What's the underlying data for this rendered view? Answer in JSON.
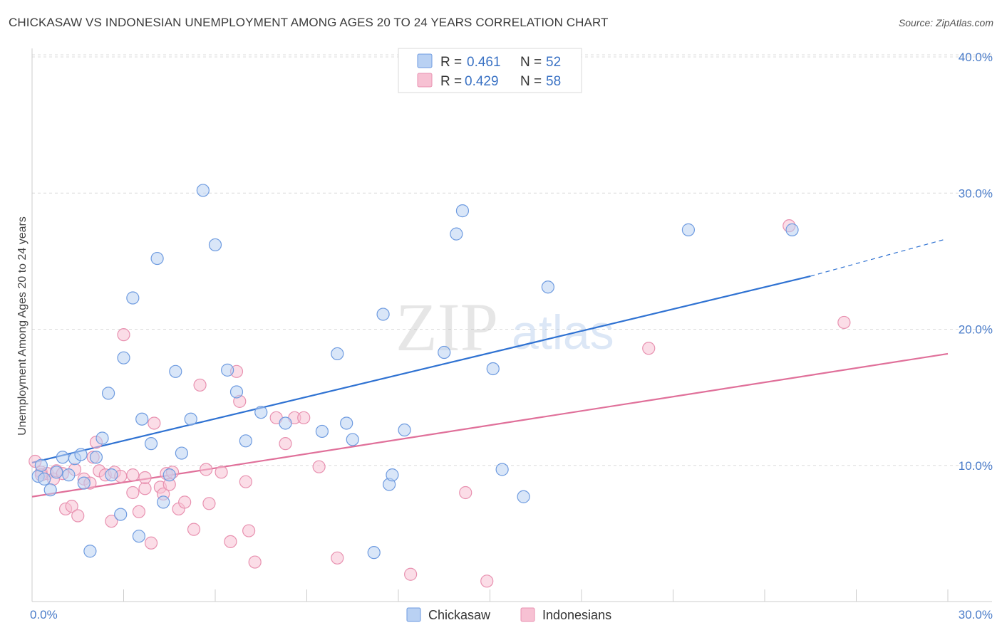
{
  "header": {
    "title": "CHICKASAW VS INDONESIAN UNEMPLOYMENT AMONG AGES 20 TO 24 YEARS CORRELATION CHART",
    "source": "Source: ZipAtlas.com"
  },
  "watermark": {
    "zip": "ZIP",
    "atlas": "atlas"
  },
  "legend": {
    "rows": [
      {
        "r_label": "R =",
        "r_value": "0.461",
        "n_label": "N =",
        "n_value": "52"
      },
      {
        "r_label": "R =",
        "r_value": "0.429",
        "n_label": "N =",
        "n_value": "58"
      }
    ]
  },
  "bottom_legend": {
    "series1": "Chickasaw",
    "series2": "Indonesians"
  },
  "colors": {
    "chickasaw_fill": "#b9d1f3",
    "chickasaw_stroke": "#6e9be0",
    "chickasaw_line": "#2f72d2",
    "indonesian_fill": "#f7c1d3",
    "indonesian_stroke": "#e891b0",
    "indonesian_line": "#e0709a",
    "grid": "#dcdcdc",
    "tick_text": "#4a7cc9"
  },
  "chart_data": {
    "type": "scatter",
    "title": "CHICKASAW VS INDONESIAN UNEMPLOYMENT AMONG AGES 20 TO 24 YEARS CORRELATION CHART",
    "xlabel": "",
    "ylabel": "Unemployment Among Ages 20 to 24 years",
    "xlim": [
      0,
      30
    ],
    "ylim": [
      0,
      40
    ],
    "x_tick_labels": [
      "0.0%",
      "30.0%"
    ],
    "y_ticks": [
      10,
      20,
      30,
      40
    ],
    "y_tick_labels": [
      "10.0%",
      "20.0%",
      "30.0%",
      "40.0%"
    ],
    "grid": true,
    "legend_position": "top-center",
    "series": [
      {
        "name": "Chickasaw",
        "R": 0.461,
        "N": 52,
        "trend": {
          "x0": 0,
          "y0": 10.2,
          "x1": 25.5,
          "y1": 23.9,
          "dashed_to_x": 29.9,
          "dashed_to_y": 26.6
        },
        "points": [
          [
            0.2,
            9.2
          ],
          [
            0.3,
            10.0
          ],
          [
            0.4,
            9.0
          ],
          [
            0.6,
            8.2
          ],
          [
            0.8,
            9.5
          ],
          [
            1.0,
            10.6
          ],
          [
            1.2,
            9.3
          ],
          [
            1.4,
            10.5
          ],
          [
            1.6,
            10.8
          ],
          [
            1.7,
            8.7
          ],
          [
            1.9,
            3.7
          ],
          [
            2.1,
            10.6
          ],
          [
            2.3,
            12.0
          ],
          [
            2.5,
            15.3
          ],
          [
            2.6,
            9.3
          ],
          [
            2.9,
            6.4
          ],
          [
            3.0,
            17.9
          ],
          [
            3.3,
            22.3
          ],
          [
            3.5,
            4.8
          ],
          [
            3.6,
            13.4
          ],
          [
            3.9,
            11.6
          ],
          [
            4.1,
            25.2
          ],
          [
            4.3,
            7.3
          ],
          [
            4.5,
            9.3
          ],
          [
            4.7,
            16.9
          ],
          [
            4.9,
            10.9
          ],
          [
            5.2,
            13.4
          ],
          [
            5.6,
            30.2
          ],
          [
            6.0,
            26.2
          ],
          [
            6.4,
            17.0
          ],
          [
            6.7,
            15.4
          ],
          [
            7.0,
            11.8
          ],
          [
            7.5,
            13.9
          ],
          [
            8.3,
            13.1
          ],
          [
            9.5,
            12.5
          ],
          [
            10.0,
            18.2
          ],
          [
            10.3,
            13.1
          ],
          [
            10.5,
            11.9
          ],
          [
            11.2,
            3.6
          ],
          [
            11.5,
            21.1
          ],
          [
            11.7,
            8.6
          ],
          [
            11.8,
            9.3
          ],
          [
            12.2,
            12.6
          ],
          [
            13.5,
            18.3
          ],
          [
            13.9,
            27.0
          ],
          [
            14.1,
            28.7
          ],
          [
            15.1,
            17.1
          ],
          [
            15.4,
            9.7
          ],
          [
            16.1,
            7.7
          ],
          [
            16.9,
            23.1
          ],
          [
            21.5,
            27.3
          ],
          [
            24.9,
            27.3
          ]
        ]
      },
      {
        "name": "Indonesians",
        "R": 0.429,
        "N": 58,
        "trend": {
          "x0": 0,
          "y0": 7.7,
          "x1": 30,
          "y1": 18.2
        },
        "points": [
          [
            0.1,
            10.3
          ],
          [
            0.3,
            9.5
          ],
          [
            0.5,
            9.4
          ],
          [
            0.7,
            9.0
          ],
          [
            0.8,
            9.6
          ],
          [
            1.0,
            9.4
          ],
          [
            1.1,
            6.8
          ],
          [
            1.3,
            7.0
          ],
          [
            1.4,
            9.7
          ],
          [
            1.5,
            6.3
          ],
          [
            1.7,
            9.0
          ],
          [
            1.9,
            8.7
          ],
          [
            2.0,
            10.6
          ],
          [
            2.1,
            11.7
          ],
          [
            2.2,
            9.6
          ],
          [
            2.4,
            9.3
          ],
          [
            2.6,
            5.9
          ],
          [
            2.7,
            9.5
          ],
          [
            2.9,
            9.2
          ],
          [
            3.0,
            19.6
          ],
          [
            3.3,
            9.3
          ],
          [
            3.3,
            8.0
          ],
          [
            3.5,
            6.6
          ],
          [
            3.7,
            8.3
          ],
          [
            3.7,
            9.1
          ],
          [
            3.9,
            4.3
          ],
          [
            4.0,
            13.1
          ],
          [
            4.2,
            8.4
          ],
          [
            4.3,
            7.9
          ],
          [
            4.4,
            9.4
          ],
          [
            4.5,
            8.6
          ],
          [
            4.6,
            9.5
          ],
          [
            4.8,
            6.8
          ],
          [
            5.0,
            7.3
          ],
          [
            5.3,
            5.3
          ],
          [
            5.5,
            15.9
          ],
          [
            5.7,
            9.7
          ],
          [
            5.8,
            7.2
          ],
          [
            6.2,
            9.5
          ],
          [
            6.5,
            4.4
          ],
          [
            6.7,
            16.9
          ],
          [
            6.8,
            14.7
          ],
          [
            7.0,
            8.8
          ],
          [
            7.1,
            5.2
          ],
          [
            7.3,
            2.9
          ],
          [
            8.0,
            13.5
          ],
          [
            8.3,
            11.6
          ],
          [
            8.6,
            13.5
          ],
          [
            8.9,
            13.5
          ],
          [
            9.4,
            9.9
          ],
          [
            10.0,
            3.2
          ],
          [
            12.4,
            2.0
          ],
          [
            14.2,
            8.0
          ],
          [
            14.9,
            1.5
          ],
          [
            20.2,
            18.6
          ],
          [
            24.8,
            27.6
          ],
          [
            26.6,
            20.5
          ],
          [
            0.3,
            9.3
          ]
        ]
      }
    ]
  }
}
